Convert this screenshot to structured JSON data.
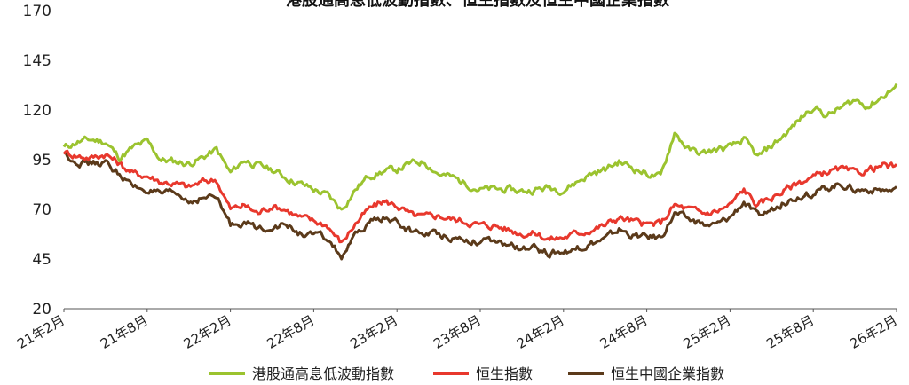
{
  "chart_data": {
    "type": "line",
    "title": "港股通高息低波動指數、恒生指數及恒生中國企業指數",
    "ylim": [
      20,
      170
    ],
    "yticks": [
      20,
      45,
      70,
      95,
      120,
      145,
      170
    ],
    "x_tick_labels": [
      "21年2月",
      "21年8月",
      "22年2月",
      "22年8月",
      "23年2月",
      "23年8月",
      "24年2月",
      "24年8月",
      "25年2月",
      "25年8月",
      "26年2月"
    ],
    "x_months": [
      0,
      6,
      12,
      18,
      24,
      30,
      36,
      42,
      48,
      54,
      60
    ],
    "grid": false,
    "legend_position": "bottom",
    "series": [
      {
        "name": "港股通高息低波動指數",
        "color": "#9bc32f",
        "x": [
          0,
          1,
          2,
          3,
          4,
          5,
          6,
          7,
          8,
          9,
          10,
          11,
          12,
          13,
          14,
          15,
          16,
          17,
          18,
          19,
          20,
          21,
          22,
          23,
          24,
          25,
          26,
          27,
          28,
          29,
          30,
          31,
          32,
          33,
          34,
          35,
          36,
          37,
          38,
          39,
          40,
          41,
          42,
          43,
          44,
          45,
          46,
          47,
          48,
          49,
          50,
          51,
          52,
          53,
          54,
          55,
          56,
          57,
          58,
          59,
          60
        ],
        "values": [
          101,
          104,
          105,
          104,
          96,
          101,
          104,
          95,
          94,
          93,
          96,
          100,
          88,
          95,
          92,
          90,
          86,
          83,
          80,
          77,
          70,
          80,
          87,
          89,
          90,
          93,
          94,
          88,
          86,
          83,
          80,
          80,
          80,
          79,
          80,
          81,
          80,
          84,
          88,
          90,
          94,
          91,
          88,
          86,
          109,
          100,
          98,
          100,
          101,
          105,
          96,
          102,
          108,
          115,
          122,
          117,
          121,
          125,
          122,
          127,
          132
        ]
      },
      {
        "name": "恒生指數",
        "color": "#e8382d",
        "x": [
          0,
          1,
          2,
          3,
          4,
          5,
          6,
          7,
          8,
          9,
          10,
          11,
          12,
          13,
          14,
          15,
          16,
          17,
          18,
          19,
          20,
          21,
          22,
          23,
          24,
          25,
          26,
          27,
          28,
          29,
          30,
          31,
          32,
          33,
          34,
          35,
          36,
          37,
          38,
          39,
          40,
          41,
          42,
          43,
          44,
          45,
          46,
          47,
          48,
          49,
          50,
          51,
          52,
          53,
          54,
          55,
          56,
          57,
          58,
          59,
          60
        ],
        "values": [
          99,
          97,
          96,
          98,
          93,
          88,
          87,
          84,
          83,
          81,
          84,
          85,
          70,
          72,
          68,
          72,
          70,
          66,
          64,
          62,
          53,
          63,
          70,
          74,
          72,
          67,
          66,
          67,
          65,
          64,
          62,
          62,
          60,
          58,
          58,
          55,
          56,
          58,
          60,
          62,
          66,
          64,
          62,
          63,
          72,
          70,
          68,
          69,
          72,
          80,
          72,
          76,
          80,
          84,
          86,
          89,
          90,
          88,
          90,
          92,
          91
        ]
      },
      {
        "name": "恒生中國企業指數",
        "color": "#5b3a1a",
        "x": [
          0,
          1,
          2,
          3,
          4,
          5,
          6,
          7,
          8,
          9,
          10,
          11,
          12,
          13,
          14,
          15,
          16,
          17,
          18,
          19,
          20,
          21,
          22,
          23,
          24,
          25,
          26,
          27,
          28,
          29,
          30,
          31,
          32,
          33,
          34,
          35,
          36,
          37,
          38,
          39,
          40,
          41,
          42,
          43,
          44,
          45,
          46,
          47,
          48,
          49,
          50,
          51,
          52,
          53,
          54,
          55,
          56,
          57,
          58,
          59,
          60
        ],
        "values": [
          98,
          94,
          93,
          93,
          88,
          81,
          80,
          77,
          78,
          74,
          76,
          76,
          62,
          64,
          60,
          62,
          62,
          58,
          57,
          55,
          46,
          56,
          63,
          66,
          63,
          59,
          58,
          58,
          56,
          55,
          54,
          53,
          52,
          50,
          50,
          48,
          49,
          50,
          53,
          55,
          60,
          57,
          56,
          56,
          68,
          65,
          62,
          62,
          66,
          74,
          66,
          70,
          74,
          77,
          78,
          81,
          83,
          80,
          80,
          80,
          79
        ]
      }
    ]
  }
}
